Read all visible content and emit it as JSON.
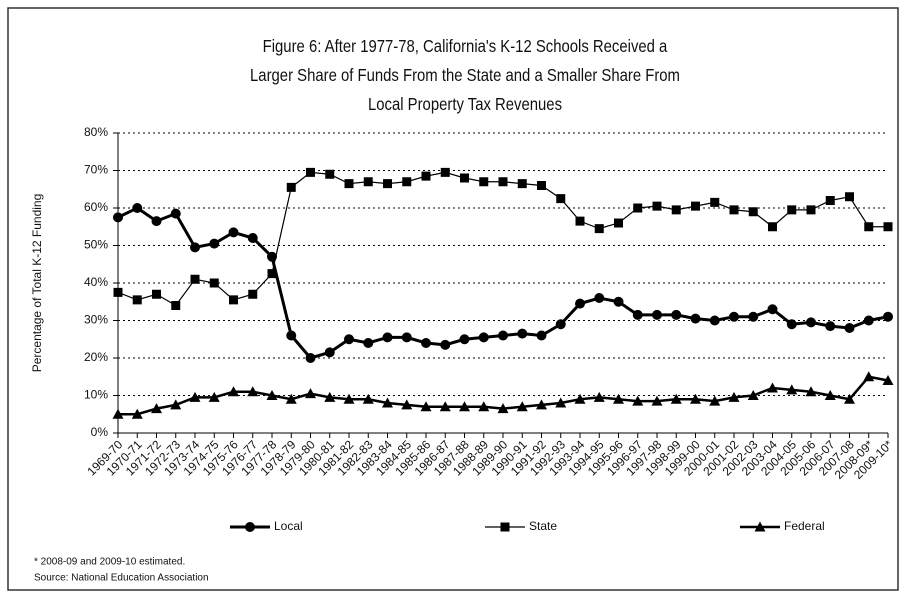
{
  "chart_data": {
    "type": "line",
    "title": "Figure 6: After 1977-78, California's K-12 Schools Received a Larger Share of Funds From the State and a Smaller Share From Local Property Tax Revenues",
    "y_label": "Percentage of Total K-12 Funding",
    "notes": [
      "* 2008-09 and 2009-10 estimated.",
      "Source: National Education Association"
    ],
    "categories": [
      "1969-70",
      "1970-71",
      "1971-72",
      "1972-73",
      "1973-74",
      "1974-75",
      "1975-76",
      "1976-77",
      "1977-78",
      "1978-79",
      "1979-80",
      "1980-81",
      "1981-82",
      "1982-83",
      "1983-84",
      "1984-85",
      "1985-86",
      "1986-87",
      "1987-88",
      "1988-89",
      "1989-90",
      "1990-91",
      "1991-92",
      "1992-93",
      "1993-94",
      "1994-95",
      "1995-96",
      "1996-97",
      "1997-98",
      "1998-99",
      "1999-00",
      "2000-01",
      "2001-02",
      "2002-03",
      "2003-04",
      "2004-05",
      "2005-06",
      "2006-07",
      "2007-08",
      "2008-09*",
      "2009-10*"
    ],
    "series": [
      {
        "name": "Local",
        "color": "#000000",
        "marker": "circle",
        "values": [
          57.5,
          60,
          56.5,
          58.5,
          49.5,
          50.5,
          53.5,
          52,
          47,
          26,
          20,
          21.5,
          25,
          24,
          25.5,
          25.5,
          24,
          23.5,
          25,
          25.5,
          26,
          26.5,
          26,
          29,
          34.5,
          36,
          35,
          31.5,
          31.5,
          31.5,
          30.5,
          30,
          31,
          31,
          33,
          29,
          29.5,
          28.5,
          28,
          30,
          31
        ]
      },
      {
        "name": "State",
        "color": "#000000",
        "marker": "square",
        "values": [
          37.5,
          35.5,
          37,
          34,
          41,
          40,
          35.5,
          37,
          42.5,
          65.5,
          69.5,
          69,
          66.5,
          67,
          66.5,
          67,
          68.5,
          69.5,
          68,
          67,
          67,
          66.5,
          66,
          62.5,
          56.5,
          54.5,
          56,
          60,
          60.5,
          59.5,
          60.5,
          61.5,
          59.5,
          59,
          55,
          59.5,
          59.5,
          62,
          63,
          55,
          55
        ]
      },
      {
        "name": "Federal",
        "color": "#000000",
        "marker": "triangle",
        "values": [
          5,
          5,
          6.5,
          7.5,
          9.5,
          9.5,
          11,
          11,
          10,
          9,
          10.5,
          9.5,
          9,
          9,
          8,
          7.5,
          7,
          7,
          7,
          7,
          6.5,
          7,
          7.5,
          8,
          9,
          9.5,
          9,
          8.5,
          8.5,
          9,
          9,
          8.5,
          9.5,
          10,
          12,
          11.5,
          11,
          10,
          9,
          15,
          14
        ]
      }
    ],
    "ylim": [
      0,
      80
    ],
    "yticks": [
      {
        "value": 0,
        "label": "0%"
      },
      {
        "value": 10,
        "label": "10%"
      },
      {
        "value": 20,
        "label": "20%"
      },
      {
        "value": 30,
        "label": "30%"
      },
      {
        "value": 40,
        "label": "40%"
      },
      {
        "value": 50,
        "label": "50%"
      },
      {
        "value": 60,
        "label": "60%"
      },
      {
        "value": 70,
        "label": "70%"
      },
      {
        "value": 80,
        "label": "80%"
      }
    ],
    "grid": true,
    "legend": "bottom"
  }
}
